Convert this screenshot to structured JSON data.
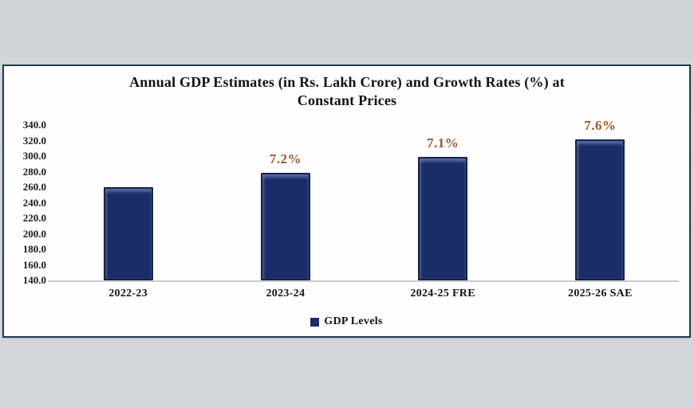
{
  "page": {
    "background_color": "#d2d5d9"
  },
  "panel": {
    "background_color": "#fefefe",
    "border_color": "#26394f"
  },
  "chart_data": {
    "type": "bar",
    "title": "Annual GDP Estimates (in Rs. Lakh Crore) and Growth Rates (%) at Constant Prices",
    "title_lines": [
      "Annual GDP Estimates (in Rs. Lakh Crore) and Growth Rates (%) at",
      "Constant Prices"
    ],
    "categories": [
      "2022-23",
      "2023-24",
      "2024-25 FRE",
      "2025-26 SAE"
    ],
    "series": [
      {
        "name": "GDP Levels",
        "values": [
          260.0,
          278.7,
          298.5,
          321.2
        ]
      }
    ],
    "growth_labels": [
      "",
      "7.2%",
      "7.1%",
      "7.6%"
    ],
    "ylim": [
      140.0,
      340.0
    ],
    "ytick_step": 20,
    "ytick_labels": [
      "340.0",
      "320.0",
      "300.0",
      "280.0",
      "260.0",
      "240.0",
      "220.0",
      "200.0",
      "180.0",
      "160.0",
      "140.0"
    ],
    "xlabel": "",
    "ylabel": "",
    "grid": false,
    "legend": {
      "position": "bottom",
      "label": "GDP Levels"
    },
    "colors": {
      "bar_fill": "#1b2d66",
      "bar_border": "#13234d",
      "growth_label": "#a0552e",
      "axis_line": "#c9cccd",
      "text": "#111214"
    }
  }
}
